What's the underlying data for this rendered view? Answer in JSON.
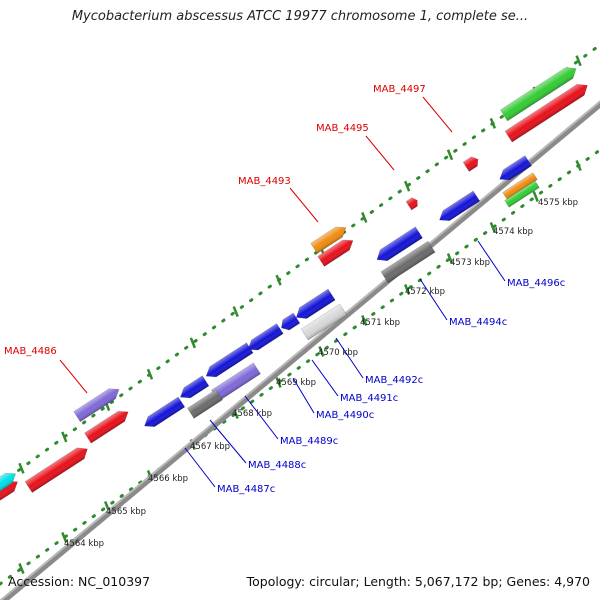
{
  "header": {
    "title": "Mycobacterium abscessus ATCC 19977 chromosome 1, complete se..."
  },
  "footer": {
    "accession": "Accession: NC_010397",
    "summary": "Topology: circular; Length: 5,067,172 bp; Genes: 4,970"
  },
  "scale": {
    "ticks": [
      {
        "label": "4564 kbp"
      },
      {
        "label": "4565 kbp"
      },
      {
        "label": "4566 kbp"
      },
      {
        "label": "4567 kbp"
      },
      {
        "label": "4568 kbp"
      },
      {
        "label": "4569 kbp"
      },
      {
        "label": "4570 kbp"
      },
      {
        "label": "4571 kbp"
      },
      {
        "label": "4572 kbp"
      },
      {
        "label": "4573 kbp"
      },
      {
        "label": "4574 kbp"
      },
      {
        "label": "4575 kbp"
      }
    ]
  },
  "genes": {
    "forward_labels": [
      {
        "label": "MAB_4486",
        "color": "#dd0000"
      },
      {
        "label": "MAB_4493",
        "color": "#dd0000"
      },
      {
        "label": "MAB_4495",
        "color": "#dd0000"
      },
      {
        "label": "MAB_4497",
        "color": "#dd0000"
      }
    ],
    "reverse_labels": [
      {
        "label": "MAB_4487c",
        "color": "#0000cc"
      },
      {
        "label": "MAB_4488c",
        "color": "#0000cc"
      },
      {
        "label": "MAB_4489c",
        "color": "#0000cc"
      },
      {
        "label": "MAB_4490c",
        "color": "#0000cc"
      },
      {
        "label": "MAB_4491c",
        "color": "#0000cc"
      },
      {
        "label": "MAB_4492c",
        "color": "#0000cc"
      },
      {
        "label": "MAB_4494c",
        "color": "#0000cc"
      },
      {
        "label": "MAB_4496c",
        "color": "#0000cc"
      }
    ]
  },
  "colors": {
    "backbone": "#8a8a8a",
    "dots": "#2e8b2e",
    "forward_label": "#dd0000",
    "reverse_label": "#0000cc",
    "red": "#e8101a",
    "blue": "#1414d8",
    "green": "#33cc33",
    "orange": "#f08c10",
    "purple": "#7f68d8",
    "grey": "#6b6b6b",
    "cyan": "#00e0e8",
    "white": "#d8d8d8"
  }
}
